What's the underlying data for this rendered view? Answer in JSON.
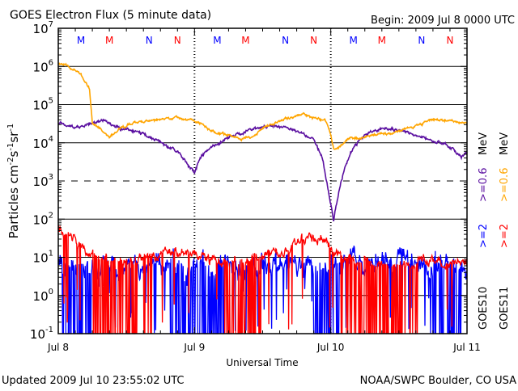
{
  "chart_data": {
    "type": "line",
    "title": "GOES Electron Flux (5 minute data)",
    "begin_label": "Begin: 2009 Jul 8 0000 UTC",
    "xlabel": "Universal Time",
    "ylabel": "Particles cm-2s-1sr-1",
    "ylabel_parts": {
      "a": "Particles cm",
      "e1": "-2",
      "b": "s",
      "e2": "-1",
      "c": "sr",
      "e3": "-1"
    },
    "x_range_hours": [
      0,
      72
    ],
    "x_ticks": [
      {
        "hour": 0,
        "label": "Jul 8"
      },
      {
        "hour": 24,
        "label": "Jul 9"
      },
      {
        "hour": 48,
        "label": "Jul 10"
      },
      {
        "hour": 72,
        "label": "Jul 11"
      }
    ],
    "y_scale": "log",
    "ylim": [
      0.1,
      10000000
    ],
    "y_ticks": [
      {
        "base": "10",
        "exp": "7"
      },
      {
        "base": "10",
        "exp": "6"
      },
      {
        "base": "10",
        "exp": "5"
      },
      {
        "base": "10",
        "exp": "4"
      },
      {
        "base": "10",
        "exp": "3"
      },
      {
        "base": "10",
        "exp": "2"
      },
      {
        "base": "10",
        "exp": "1"
      },
      {
        "base": "10",
        "exp": "0"
      },
      {
        "base": "10",
        "exp": "-1"
      }
    ],
    "gridlines": {
      "solid_exponents": [
        6,
        5,
        4,
        2,
        1,
        0
      ],
      "dashed_exponents": [
        3
      ]
    },
    "markers": [
      {
        "hour": 4,
        "label": "M",
        "color": "#0000ff"
      },
      {
        "hour": 9,
        "label": "M",
        "color": "#ff0000"
      },
      {
        "hour": 16,
        "label": "N",
        "color": "#0000ff"
      },
      {
        "hour": 21,
        "label": "N",
        "color": "#ff0000"
      },
      {
        "hour": 28,
        "label": "M",
        "color": "#0000ff"
      },
      {
        "hour": 33,
        "label": "M",
        "color": "#ff0000"
      },
      {
        "hour": 40,
        "label": "N",
        "color": "#0000ff"
      },
      {
        "hour": 45,
        "label": "N",
        "color": "#ff0000"
      },
      {
        "hour": 52,
        "label": "M",
        "color": "#0000ff"
      },
      {
        "hour": 57,
        "label": "M",
        "color": "#ff0000"
      },
      {
        "hour": 64,
        "label": "N",
        "color": "#0000ff"
      },
      {
        "hour": 69,
        "label": "N",
        "color": "#ff0000"
      }
    ],
    "series": [
      {
        "name": ">=0.6 MeV GOES10",
        "color": "#5a0fa0",
        "noise": 0.05,
        "log10_points": [
          [
            0,
            4.5
          ],
          [
            3,
            4.4
          ],
          [
            6,
            4.5
          ],
          [
            8,
            4.6
          ],
          [
            10,
            4.4
          ],
          [
            14,
            4.3
          ],
          [
            18,
            4.0
          ],
          [
            21,
            3.8
          ],
          [
            23,
            3.4
          ],
          [
            24,
            3.2
          ],
          [
            25,
            3.6
          ],
          [
            27,
            3.9
          ],
          [
            30,
            4.1
          ],
          [
            33,
            4.3
          ],
          [
            36,
            4.4
          ],
          [
            38,
            4.45
          ],
          [
            42,
            4.3
          ],
          [
            45,
            4.1
          ],
          [
            46.5,
            3.6
          ],
          [
            47.5,
            2.8
          ],
          [
            48,
            2.4
          ],
          [
            48.5,
            2.0
          ],
          [
            49.5,
            2.8
          ],
          [
            50.5,
            3.4
          ],
          [
            52,
            3.9
          ],
          [
            54,
            4.2
          ],
          [
            57,
            4.35
          ],
          [
            60,
            4.35
          ],
          [
            63,
            4.2
          ],
          [
            66,
            4.05
          ],
          [
            69,
            3.9
          ],
          [
            71,
            3.65
          ],
          [
            72,
            3.8
          ]
        ],
        "dropout_hours": []
      },
      {
        "name": ">=0.6 MeV GOES11",
        "color": "#ffa500",
        "noise": 0.04,
        "log10_points": [
          [
            0,
            6.1
          ],
          [
            2,
            6.0
          ],
          [
            4,
            5.8
          ],
          [
            5.5,
            5.4
          ],
          [
            6,
            4.5
          ],
          [
            7,
            4.4
          ],
          [
            9,
            4.15
          ],
          [
            11,
            4.4
          ],
          [
            14,
            4.55
          ],
          [
            18,
            4.6
          ],
          [
            21,
            4.65
          ],
          [
            24,
            4.6
          ],
          [
            26,
            4.4
          ],
          [
            28,
            4.25
          ],
          [
            30,
            4.2
          ],
          [
            32,
            4.1
          ],
          [
            34,
            4.15
          ],
          [
            36,
            4.4
          ],
          [
            40,
            4.6
          ],
          [
            43,
            4.75
          ],
          [
            45,
            4.65
          ],
          [
            47,
            4.6
          ],
          [
            48,
            4.2
          ],
          [
            48.5,
            3.8
          ],
          [
            49.5,
            3.9
          ],
          [
            51,
            4.1
          ],
          [
            54,
            4.15
          ],
          [
            57,
            4.2
          ],
          [
            60,
            4.3
          ],
          [
            63,
            4.45
          ],
          [
            66,
            4.6
          ],
          [
            69,
            4.6
          ],
          [
            72,
            4.5
          ]
        ],
        "dropout_hours": []
      },
      {
        "name": ">=2 MeV GOES10",
        "color": "#0000ff",
        "noise": 0.35,
        "log10_points": [
          [
            0,
            0.7
          ],
          [
            12,
            0.75
          ],
          [
            24,
            0.7
          ],
          [
            36,
            0.8
          ],
          [
            48,
            0.75
          ],
          [
            60,
            0.85
          ],
          [
            72,
            0.7
          ]
        ],
        "dropout_hours": [
          [
            0.7,
            6
          ],
          [
            19.7,
            29.3
          ],
          [
            45,
            49.7
          ],
          [
            65.5,
            71
          ]
        ]
      },
      {
        "name": ">=2 MeV GOES11",
        "color": "#ff0000",
        "noise": 0.15,
        "log10_points": [
          [
            0,
            1.7
          ],
          [
            2,
            1.55
          ],
          [
            4,
            1.3
          ],
          [
            6,
            1.0
          ],
          [
            8,
            0.9
          ],
          [
            12,
            0.9
          ],
          [
            16,
            1.0
          ],
          [
            20,
            1.1
          ],
          [
            24,
            1.15
          ],
          [
            28,
            0.9
          ],
          [
            32,
            0.9
          ],
          [
            36,
            1.0
          ],
          [
            40,
            1.2
          ],
          [
            43,
            1.5
          ],
          [
            46,
            1.55
          ],
          [
            48,
            1.3
          ],
          [
            50,
            1.0
          ],
          [
            54,
            0.85
          ],
          [
            60,
            0.8
          ],
          [
            66,
            0.9
          ],
          [
            72,
            0.85
          ]
        ],
        "dropout_hours": [
          [
            6,
            13.9
          ],
          [
            15,
            16.5
          ],
          [
            29.3,
            35.7
          ],
          [
            49.7,
            63.4
          ]
        ]
      }
    ],
    "legend": {
      "placement": "right",
      "columns": [
        {
          "text_a": ">=2",
          "color_a": "#0000ff",
          "text_b": ">=0.6",
          "color_b": "#5a0fa0",
          "unit": "MeV",
          "sat": "GOES10"
        },
        {
          "text_a": ">=2",
          "color_a": "#ff0000",
          "text_b": ">=0.6",
          "color_b": "#ffa500",
          "unit": "MeV",
          "sat": "GOES11"
        }
      ]
    }
  },
  "footer": {
    "updated": "Updated 2009 Jul 10 23:55:02 UTC",
    "credit": "NOAA/SWPC Boulder, CO USA"
  }
}
